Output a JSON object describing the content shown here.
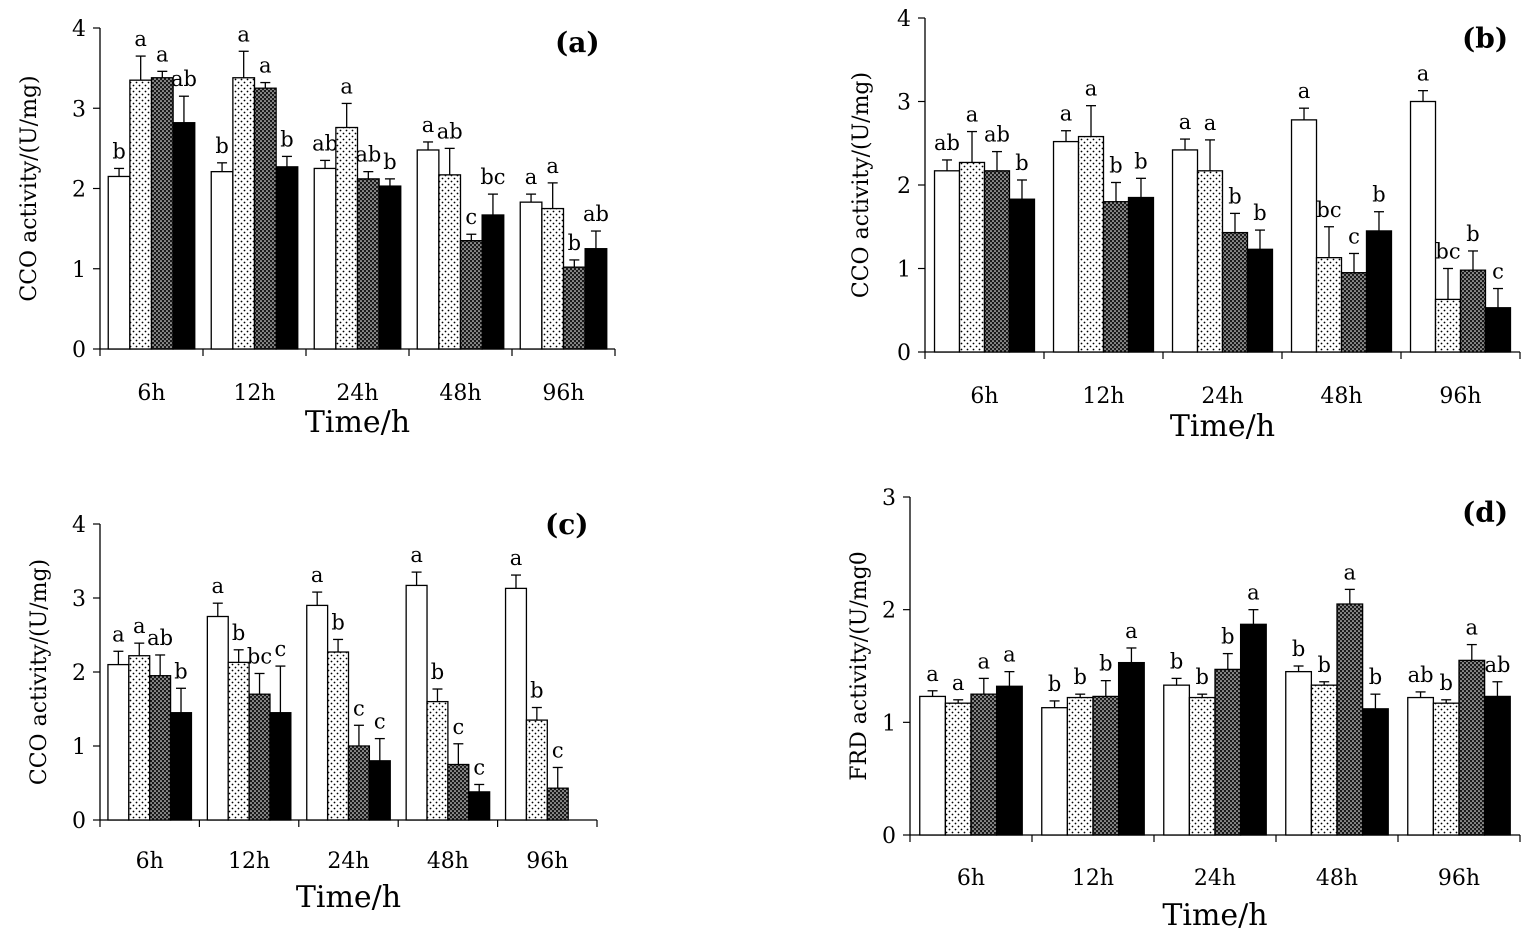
{
  "chart_data": [
    {
      "type": "bar",
      "panel_label": "(a)",
      "ylabel": "CCO activity/(U/mg)",
      "xlabel": "Time/h",
      "ylim": [
        0,
        4
      ],
      "yticks": [
        0,
        1,
        2,
        3,
        4
      ],
      "categories": [
        "6h",
        "12h",
        "24h",
        "48h",
        "96h"
      ],
      "series": [
        {
          "fill": "white",
          "values": [
            2.15,
            2.21,
            2.25,
            2.48,
            1.83
          ],
          "errors": [
            0.1,
            0.11,
            0.1,
            0.1,
            0.1
          ],
          "letters": [
            "b",
            "b",
            "ab",
            "a",
            "a"
          ]
        },
        {
          "fill": "sparse-dots",
          "values": [
            3.35,
            3.38,
            2.76,
            2.17,
            1.75
          ],
          "errors": [
            0.3,
            0.33,
            0.3,
            0.33,
            0.32
          ],
          "letters": [
            "a",
            "a",
            "a",
            "ab",
            "a"
          ]
        },
        {
          "fill": "dense-dots",
          "values": [
            3.38,
            3.25,
            2.12,
            1.35,
            1.02
          ],
          "errors": [
            0.08,
            0.07,
            0.09,
            0.08,
            0.09
          ],
          "letters": [
            "a",
            "a",
            "ab",
            "c",
            "b"
          ]
        },
        {
          "fill": "black",
          "values": [
            2.82,
            2.27,
            2.03,
            1.67,
            1.25
          ],
          "errors": [
            0.33,
            0.13,
            0.09,
            0.26,
            0.22
          ],
          "letters": [
            "ab",
            "b",
            "b",
            "bc",
            "ab"
          ]
        }
      ]
    },
    {
      "type": "bar",
      "panel_label": "(b)",
      "ylabel": "CCO activity/(U/mg)",
      "xlabel": "Time/h",
      "ylim": [
        0,
        4
      ],
      "yticks": [
        0,
        1,
        2,
        3,
        4
      ],
      "categories": [
        "6h",
        "12h",
        "24h",
        "48h",
        "96h"
      ],
      "series": [
        {
          "fill": "white",
          "values": [
            2.17,
            2.52,
            2.42,
            2.78,
            3.0
          ],
          "errors": [
            0.13,
            0.13,
            0.13,
            0.14,
            0.13
          ],
          "letters": [
            "ab",
            "a",
            "a",
            "a",
            "a"
          ]
        },
        {
          "fill": "sparse-dots",
          "values": [
            2.27,
            2.58,
            2.17,
            1.13,
            0.63
          ],
          "errors": [
            0.37,
            0.37,
            0.37,
            0.37,
            0.37
          ],
          "letters": [
            "a",
            "a",
            "a",
            "bc",
            "bc"
          ]
        },
        {
          "fill": "dense-dots",
          "values": [
            2.17,
            1.8,
            1.43,
            0.95,
            0.98
          ],
          "errors": [
            0.23,
            0.23,
            0.23,
            0.23,
            0.23
          ],
          "letters": [
            "ab",
            "b",
            "b",
            "c",
            "b"
          ]
        },
        {
          "fill": "black",
          "values": [
            1.83,
            1.85,
            1.23,
            1.45,
            0.53
          ],
          "errors": [
            0.23,
            0.23,
            0.23,
            0.23,
            0.23
          ],
          "letters": [
            "b",
            "b",
            "b",
            "b",
            "c"
          ]
        }
      ]
    },
    {
      "type": "bar",
      "panel_label": "(c)",
      "ylabel": "CCO activity/(U/mg)",
      "xlabel": "Time/h",
      "ylim": [
        0,
        4
      ],
      "yticks": [
        0,
        1,
        2,
        3,
        4
      ],
      "categories": [
        "6h",
        "12h",
        "24h",
        "48h",
        "96h"
      ],
      "series": [
        {
          "fill": "white",
          "values": [
            2.1,
            2.75,
            2.9,
            3.17,
            3.13
          ],
          "errors": [
            0.18,
            0.18,
            0.18,
            0.18,
            0.18
          ],
          "letters": [
            "a",
            "a",
            "a",
            "a",
            "a"
          ]
        },
        {
          "fill": "sparse-dots",
          "values": [
            2.22,
            2.13,
            2.27,
            1.6,
            1.35
          ],
          "errors": [
            0.17,
            0.17,
            0.17,
            0.17,
            0.17
          ],
          "letters": [
            "a",
            "b",
            "b",
            "b",
            "b"
          ]
        },
        {
          "fill": "dense-dots",
          "values": [
            1.95,
            1.7,
            1.0,
            0.75,
            0.43
          ],
          "errors": [
            0.28,
            0.28,
            0.28,
            0.28,
            0.28
          ],
          "letters": [
            "ab",
            "bc",
            "c",
            "c",
            "c"
          ]
        },
        {
          "fill": "black",
          "values": [
            1.45,
            1.45,
            0.8,
            0.38,
            null
          ],
          "errors": [
            0.33,
            0.63,
            0.3,
            0.1,
            null
          ],
          "letters": [
            "b",
            "c",
            "c",
            "c",
            ""
          ]
        }
      ]
    },
    {
      "type": "bar",
      "panel_label": "(d)",
      "ylabel": "FRD activity/(U/mg0",
      "xlabel": "Time/h",
      "ylim": [
        0,
        3
      ],
      "yticks": [
        0,
        1,
        2,
        3
      ],
      "categories": [
        "6h",
        "12h",
        "24h",
        "48h",
        "96h"
      ],
      "series": [
        {
          "fill": "white",
          "values": [
            1.23,
            1.13,
            1.33,
            1.45,
            1.22
          ],
          "errors": [
            0.05,
            0.06,
            0.06,
            0.05,
            0.05
          ],
          "letters": [
            "a",
            "b",
            "b",
            "b",
            "ab"
          ]
        },
        {
          "fill": "sparse-dots",
          "values": [
            1.17,
            1.22,
            1.22,
            1.33,
            1.17
          ],
          "errors": [
            0.03,
            0.03,
            0.03,
            0.03,
            0.03
          ],
          "letters": [
            "a",
            "b",
            "b",
            "b",
            "b"
          ]
        },
        {
          "fill": "dense-dots",
          "values": [
            1.25,
            1.23,
            1.47,
            2.05,
            1.55
          ],
          "errors": [
            0.14,
            0.14,
            0.14,
            0.13,
            0.14
          ],
          "letters": [
            "a",
            "b",
            "b",
            "a",
            "a"
          ]
        },
        {
          "fill": "black",
          "values": [
            1.32,
            1.53,
            1.87,
            1.12,
            1.23
          ],
          "errors": [
            0.13,
            0.13,
            0.13,
            0.13,
            0.13
          ],
          "letters": [
            "a",
            "a",
            "a",
            "b",
            "ab"
          ]
        }
      ]
    }
  ]
}
